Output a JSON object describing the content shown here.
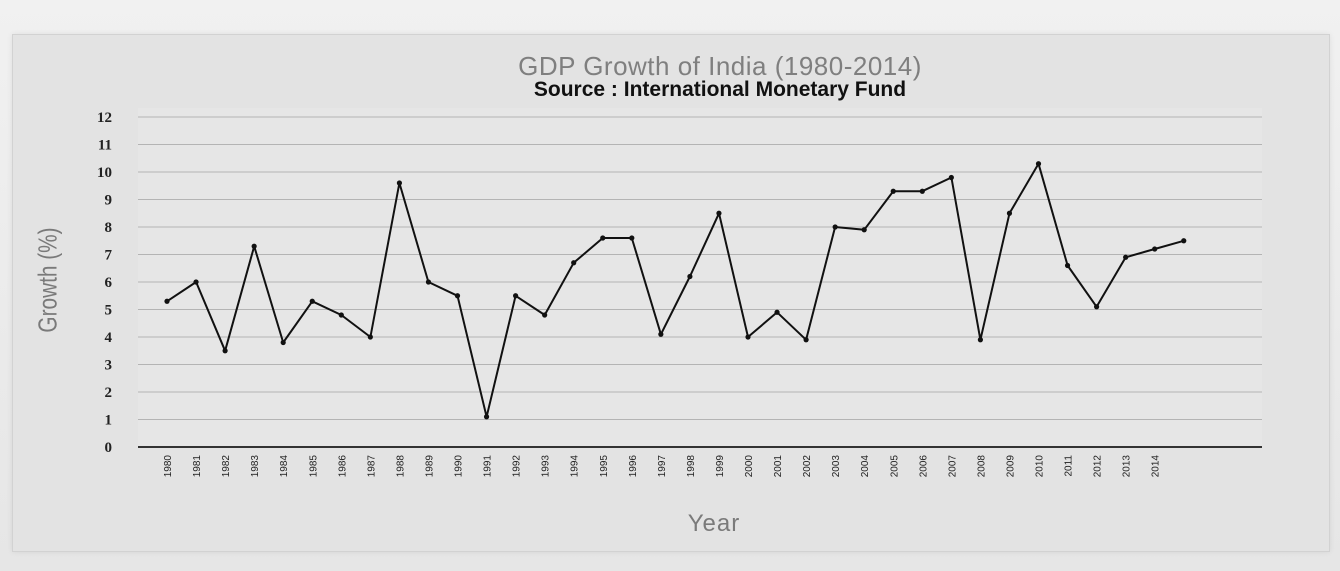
{
  "chart_data": {
    "type": "line",
    "title": "GDP Growth of India (1980-2014)",
    "subtitle": "Source : International Monetary Fund",
    "xlabel": "Year",
    "ylabel": "Growth (%)",
    "ylim": [
      0,
      12
    ],
    "yticks": [
      0,
      1,
      2,
      3,
      4,
      5,
      6,
      7,
      8,
      9,
      10,
      11,
      12
    ],
    "grid": true,
    "categories": [
      "1980",
      "1981",
      "1982",
      "1983",
      "1984",
      "1985",
      "1986",
      "1987",
      "1988",
      "1989",
      "1990",
      "1991",
      "1992",
      "1993",
      "1994",
      "1995",
      "1996",
      "1997",
      "1998",
      "1999",
      "2000",
      "2001",
      "2002",
      "2003",
      "2004",
      "2005",
      "2006",
      "2007",
      "2008",
      "2009",
      "2010",
      "2011",
      "2012",
      "2013",
      "2014"
    ],
    "series": [
      {
        "values": [
          5.3,
          6.0,
          3.5,
          7.3,
          3.8,
          5.3,
          4.8,
          4.0,
          9.6,
          6.0,
          5.5,
          1.1,
          5.5,
          4.8,
          6.7,
          7.6,
          7.6,
          4.1,
          6.2,
          8.5,
          4.0,
          4.9,
          3.9,
          8.0,
          7.9,
          9.3,
          9.3,
          9.8,
          3.9,
          8.5,
          10.3,
          6.6,
          5.1,
          6.9,
          7.2
        ],
        "extra_points": [
          7.5
        ]
      }
    ],
    "colors": {
      "line": "#111111",
      "grid": "#b4b4b4",
      "plot_bg": "#e6e6e6"
    }
  }
}
